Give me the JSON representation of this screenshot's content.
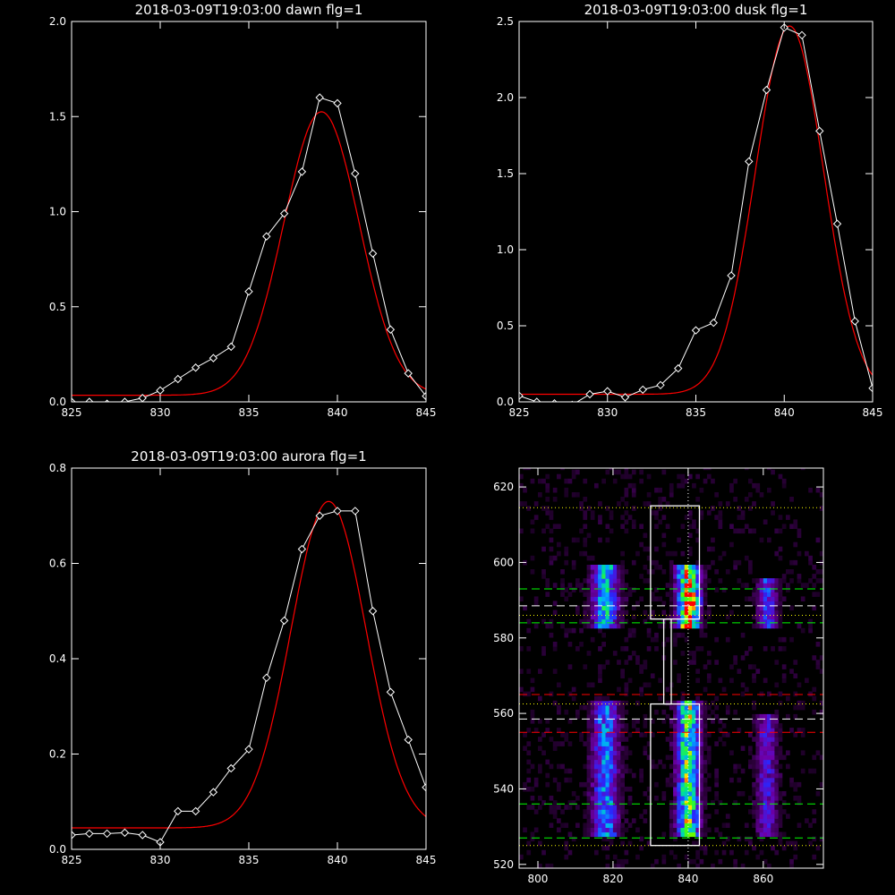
{
  "chart_data": [
    {
      "type": "line",
      "title": "2018-03-09T19:03:00 dawn flg=1",
      "xlim": [
        825,
        845
      ],
      "ylim": [
        0,
        2.0
      ],
      "xticks": [
        825,
        830,
        835,
        840,
        845
      ],
      "yticks": [
        0.0,
        0.5,
        1.0,
        1.5,
        2.0
      ],
      "ytick_labels": [
        "0.0",
        "0.5",
        "1.0",
        "1.5",
        "2.0"
      ],
      "series": [
        {
          "style": "white-line-diamonds",
          "x": [
            825,
            826,
            827,
            828,
            829,
            830,
            831,
            832,
            833,
            834,
            835,
            836,
            837,
            838,
            839,
            840,
            841,
            842,
            843,
            844,
            845
          ],
          "y": [
            0.0,
            0.0,
            -0.01,
            0.0,
            0.02,
            0.06,
            0.12,
            0.18,
            0.23,
            0.29,
            0.58,
            0.87,
            0.99,
            1.21,
            1.6,
            1.57,
            1.2,
            0.78,
            0.38,
            0.15,
            0.03
          ]
        },
        {
          "style": "red-fit-gaussian",
          "offset": 0.035,
          "amplitude": 1.49,
          "center": 839.1,
          "sigma": 2.13
        }
      ]
    },
    {
      "type": "line",
      "title": "2018-03-09T19:03:00 dusk flg=1",
      "xlim": [
        825,
        845
      ],
      "ylim": [
        0,
        2.5
      ],
      "xticks": [
        825,
        830,
        835,
        840,
        845
      ],
      "yticks": [
        0.0,
        0.5,
        1.0,
        1.5,
        2.0,
        2.5
      ],
      "ytick_labels": [
        "0.0",
        "0.5",
        "1.0",
        "1.5",
        "2.0",
        "2.5"
      ],
      "series": [
        {
          "style": "white-line-diamonds",
          "x": [
            825,
            826,
            827,
            828,
            829,
            830,
            831,
            832,
            833,
            834,
            835,
            836,
            837,
            838,
            839,
            840,
            841,
            842,
            843,
            844,
            845
          ],
          "y": [
            0.04,
            0.0,
            -0.01,
            -0.02,
            0.05,
            0.07,
            0.03,
            0.08,
            0.11,
            0.22,
            0.47,
            0.52,
            0.83,
            1.58,
            2.05,
            2.46,
            2.41,
            1.78,
            1.17,
            0.53,
            0.09
          ]
        },
        {
          "style": "red-fit-gaussian",
          "offset": 0.05,
          "amplitude": 2.42,
          "center": 840.3,
          "sigma": 1.93
        }
      ]
    },
    {
      "type": "line",
      "title": "2018-03-09T19:03:00 aurora flg=1",
      "xlim": [
        825,
        845
      ],
      "ylim": [
        0,
        0.8
      ],
      "xticks": [
        825,
        830,
        835,
        840,
        845
      ],
      "yticks": [
        0.0,
        0.2,
        0.4,
        0.6,
        0.8
      ],
      "ytick_labels": [
        "0.0",
        "0.2",
        "0.4",
        "0.6",
        "0.8"
      ],
      "series": [
        {
          "style": "white-line-diamonds",
          "x": [
            825,
            826,
            827,
            828,
            829,
            830,
            831,
            832,
            833,
            834,
            835,
            836,
            837,
            838,
            839,
            840,
            841,
            842,
            843,
            844,
            845
          ],
          "y": [
            0.03,
            0.033,
            0.033,
            0.035,
            0.03,
            0.015,
            0.08,
            0.08,
            0.12,
            0.17,
            0.21,
            0.36,
            0.48,
            0.63,
            0.7,
            0.71,
            0.71,
            0.5,
            0.33,
            0.23,
            0.13
          ]
        },
        {
          "style": "red-fit-gaussian",
          "offset": 0.045,
          "amplitude": 0.685,
          "center": 839.5,
          "sigma": 2.12
        }
      ]
    },
    {
      "type": "heatmap",
      "xlim": [
        795,
        876
      ],
      "ylim": [
        519,
        625
      ],
      "xticks": [
        800,
        820,
        840,
        860
      ],
      "yticks": [
        520,
        540,
        560,
        580,
        600,
        620
      ],
      "bands": [
        {
          "x": 818,
          "sigma": 2.3,
          "segments": [
            [
              583,
              600,
              0.55
            ],
            [
              528,
              563,
              0.45
            ]
          ]
        },
        {
          "x": 840,
          "sigma": 2.0,
          "segments": [
            [
              583,
              600,
              0.85
            ],
            [
              528,
              563,
              0.7
            ]
          ]
        },
        {
          "x": 861,
          "sigma": 1.8,
          "segments": [
            [
              583,
              596,
              0.35
            ],
            [
              528,
              560,
              0.28
            ]
          ]
        }
      ],
      "hotspot": {
        "x": 841,
        "y": 590,
        "value": 1.0
      },
      "lines": [
        {
          "y": 614.5,
          "color": "#ffff00",
          "style": "dotted"
        },
        {
          "y": 593,
          "color": "#00ff00",
          "style": "dashed"
        },
        {
          "y": 588.5,
          "color": "#ffffff",
          "style": "dashed"
        },
        {
          "y": 586,
          "color": "#ffff00",
          "style": "dotted"
        },
        {
          "y": 584,
          "color": "#00ff00",
          "style": "dashed"
        },
        {
          "y": 565,
          "color": "#ff0000",
          "style": "dashed"
        },
        {
          "y": 562.5,
          "color": "#ffff00",
          "style": "dotted"
        },
        {
          "y": 558.5,
          "color": "#ffffff",
          "style": "dashed"
        },
        {
          "y": 555,
          "color": "#ff0000",
          "style": "dashed"
        },
        {
          "y": 536,
          "color": "#00ff00",
          "style": "dashed"
        },
        {
          "y": 527,
          "color": "#00ff00",
          "style": "dashed"
        },
        {
          "y": 525,
          "color": "#ffff00",
          "style": "dotted"
        }
      ],
      "vline": {
        "x": 840,
        "color": "#ffffff",
        "style": "dotted"
      },
      "boxes": [
        {
          "x0": 830,
          "x1": 843,
          "y0": 585,
          "y1": 615
        },
        {
          "x0": 830,
          "x1": 843,
          "y0": 525,
          "y1": 562.5
        },
        {
          "x0": 833.5,
          "x1": 835.5,
          "y0": 562.5,
          "y1": 585
        }
      ]
    }
  ]
}
